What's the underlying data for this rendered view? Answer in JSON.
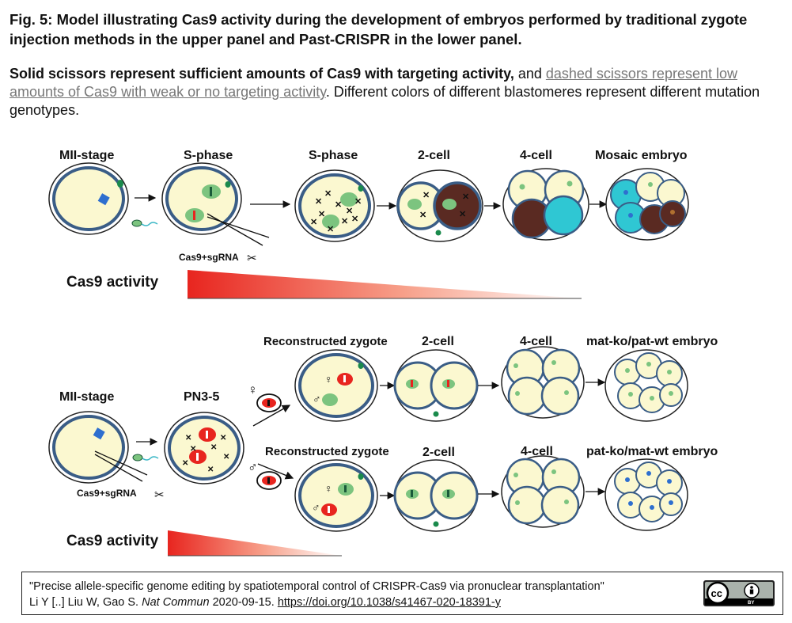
{
  "title": "Fig. 5: Model illustrating Cas9 activity during the development of embryos performed by traditional zygote injection methods in the upper panel and Past-CRISPR in the lower panel.",
  "caption": {
    "bold": "Solid scissors represent sufficient amounts of Cas9 with targeting activity,",
    "and": " and ",
    "underlined": "dashed scissors represent low amounts of Cas9 with weak or no targeting activity",
    "rest": ". Different colors of different blastomeres represent different mutation genotypes."
  },
  "upper": {
    "stages": [
      "MII-stage",
      "S-phase",
      "S-phase",
      "2-cell",
      "4-cell",
      "Mosaic embryo"
    ],
    "injection_label": "Cas9+sgRNA",
    "activity_label": "Cas9 activity"
  },
  "lower": {
    "stage_mii": "MII-stage",
    "stage_pn": "PN3-5",
    "row1": [
      "Reconstructed zygote",
      "2-cell",
      "4-cell",
      "mat-ko/pat-wt embryo"
    ],
    "row2": [
      "Reconstructed zygote",
      "2-cell",
      "4-cell",
      "pat-ko/mat-wt embryo"
    ],
    "female_symbol": "♀",
    "male_symbol": "♂",
    "injection_label": "Cas9+sgRNA",
    "activity_label": "Cas9 activity"
  },
  "citation": {
    "line1": "\"Precise allele-specific genome editing by spatiotemporal control of CRISPR-Cas9 via pronuclear transplantation\"",
    "authors": "Li Y [..] Liu W, Gao S. ",
    "journal": "Nat Commun",
    "date": " 2020-09-15. ",
    "doi": "https://doi.org/10.1038/s41467-020-18391-y"
  },
  "license": {
    "cc": "cc",
    "by": "BY"
  },
  "colors": {
    "cytoplasm": "#fbf8d0",
    "membrane": "#3a5d86",
    "red": "#e8251f",
    "green": "#7cc47f",
    "cyan": "#2fc7d3",
    "brown": "#5a2a22"
  }
}
